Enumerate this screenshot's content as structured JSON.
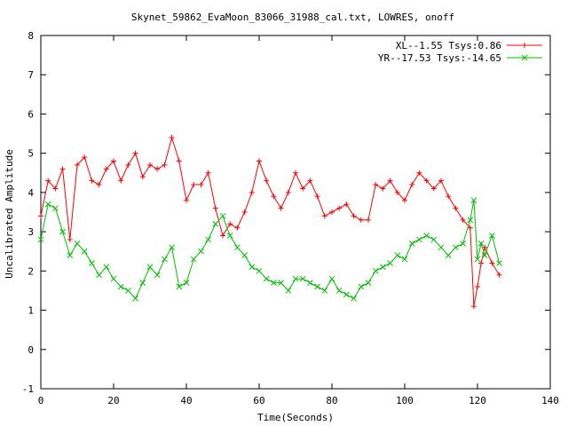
{
  "chart_data": {
    "type": "line",
    "title": "Skynet_59862_EvaMoon_83066_31988_cal.txt, LOWRES, onoff",
    "xlabel": "Time(Seconds)",
    "ylabel": "Uncalibrated Amplitude",
    "xlim": [
      0,
      140
    ],
    "ylim": [
      -1,
      8
    ],
    "xticks": [
      "0",
      "20",
      "40",
      "60",
      "80",
      "100",
      "120",
      "140"
    ],
    "yticks": [
      "-1",
      "0",
      "1",
      "2",
      "3",
      "4",
      "5",
      "6",
      "7",
      "8"
    ],
    "grid": false,
    "legend_position": "top-right",
    "series": [
      {
        "name": "XL--1.55 Tsys:0.86",
        "color": "#ff0000",
        "marker": "plus",
        "x": [
          0,
          2,
          4,
          6,
          8,
          10,
          12,
          14,
          16,
          18,
          20,
          22,
          24,
          26,
          28,
          30,
          32,
          34,
          36,
          38,
          40,
          42,
          44,
          46,
          48,
          50,
          52,
          54,
          56,
          58,
          60,
          62,
          64,
          66,
          68,
          70,
          72,
          74,
          76,
          78,
          80,
          82,
          84,
          86,
          88,
          90,
          92,
          94,
          96,
          98,
          100,
          102,
          104,
          106,
          108,
          110,
          112,
          114,
          116,
          118,
          119,
          120,
          121,
          122,
          124,
          126
        ],
        "y": [
          3.4,
          4.3,
          4.1,
          4.6,
          2.8,
          4.7,
          4.9,
          4.3,
          4.2,
          4.6,
          4.8,
          4.3,
          4.7,
          5.0,
          4.4,
          4.7,
          4.6,
          4.7,
          5.4,
          4.8,
          3.8,
          4.2,
          4.2,
          4.5,
          3.6,
          2.9,
          3.2,
          3.1,
          3.5,
          4.0,
          4.8,
          4.3,
          3.9,
          3.6,
          4.0,
          4.5,
          4.1,
          4.3,
          3.9,
          3.4,
          3.5,
          3.6,
          3.7,
          3.4,
          3.3,
          3.3,
          4.2,
          4.1,
          4.3,
          4.0,
          3.8,
          4.2,
          4.5,
          4.3,
          4.1,
          4.3,
          3.9,
          3.6,
          3.3,
          3.1,
          1.1,
          1.6,
          2.2,
          2.6,
          2.2,
          1.9
        ]
      },
      {
        "name": "YR--17.53 Tsys:-14.65",
        "color": "#00c000",
        "marker": "cross",
        "x": [
          0,
          2,
          4,
          6,
          8,
          10,
          12,
          14,
          16,
          18,
          20,
          22,
          24,
          26,
          28,
          30,
          32,
          34,
          36,
          38,
          40,
          42,
          44,
          46,
          48,
          50,
          52,
          54,
          56,
          58,
          60,
          62,
          64,
          66,
          68,
          70,
          72,
          74,
          76,
          78,
          80,
          82,
          84,
          86,
          88,
          90,
          92,
          94,
          96,
          98,
          100,
          102,
          104,
          106,
          108,
          110,
          112,
          114,
          116,
          118,
          119,
          120,
          121,
          122,
          124,
          126
        ],
        "y": [
          2.8,
          3.7,
          3.6,
          3.0,
          2.4,
          2.7,
          2.5,
          2.2,
          1.9,
          2.1,
          1.8,
          1.6,
          1.5,
          1.3,
          1.7,
          2.1,
          1.9,
          2.3,
          2.6,
          1.6,
          1.7,
          2.3,
          2.5,
          2.8,
          3.2,
          3.4,
          2.9,
          2.6,
          2.4,
          2.1,
          2.0,
          1.8,
          1.7,
          1.7,
          1.5,
          1.8,
          1.8,
          1.7,
          1.6,
          1.5,
          1.8,
          1.5,
          1.4,
          1.3,
          1.6,
          1.7,
          2.0,
          2.1,
          2.2,
          2.4,
          2.3,
          2.7,
          2.8,
          2.9,
          2.8,
          2.6,
          2.4,
          2.6,
          2.7,
          3.3,
          3.8,
          2.3,
          2.7,
          2.4,
          2.9,
          2.2
        ]
      }
    ]
  }
}
